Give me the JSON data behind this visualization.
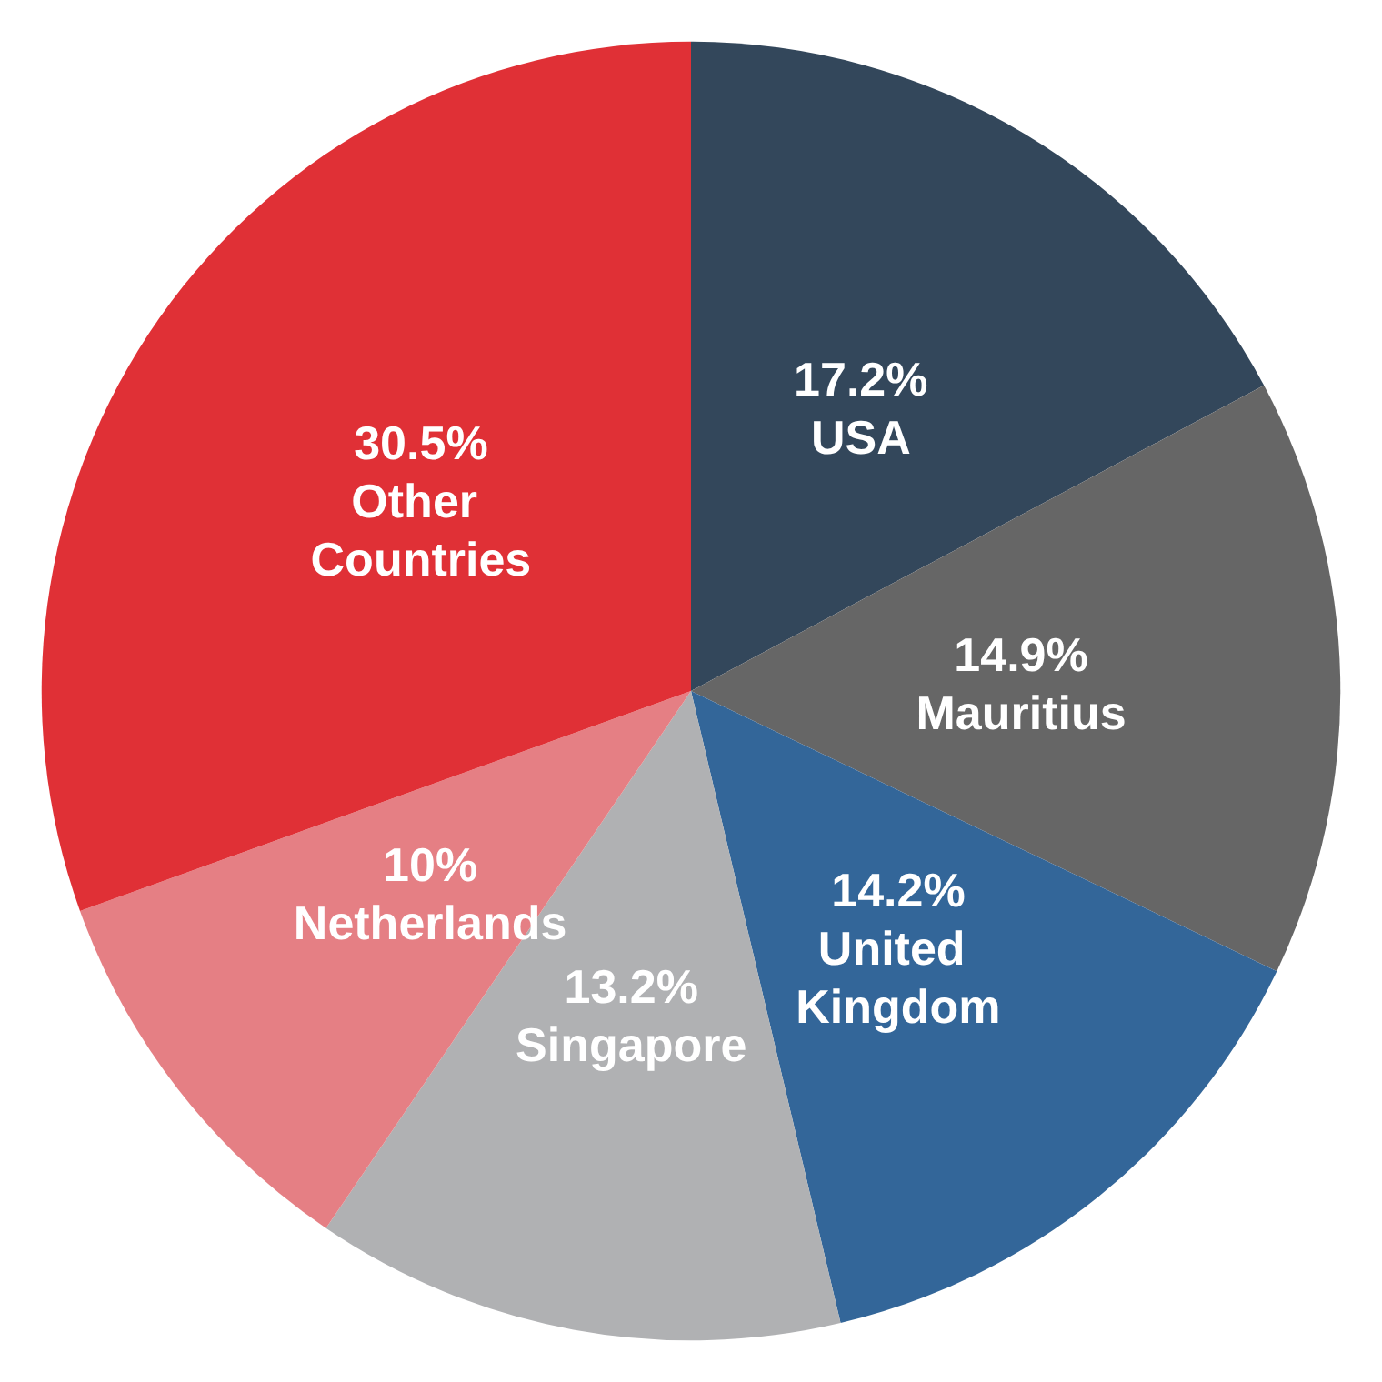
{
  "chart_data": {
    "type": "pie",
    "categories": [
      "USA",
      "Mauritius",
      "United Kingdom",
      "Singapore",
      "Netherlands",
      "Other Countries"
    ],
    "values": [
      17.2,
      14.9,
      14.2,
      13.2,
      10,
      30.5
    ],
    "value_labels": [
      "17.2%",
      "14.9%",
      "14.2%",
      "13.2%",
      "10%",
      "30.5%"
    ],
    "colors": [
      "#33475b",
      "#666666",
      "#336699",
      "#b0b1b3",
      "#e57f84",
      "#e03036"
    ],
    "legend": false
  }
}
